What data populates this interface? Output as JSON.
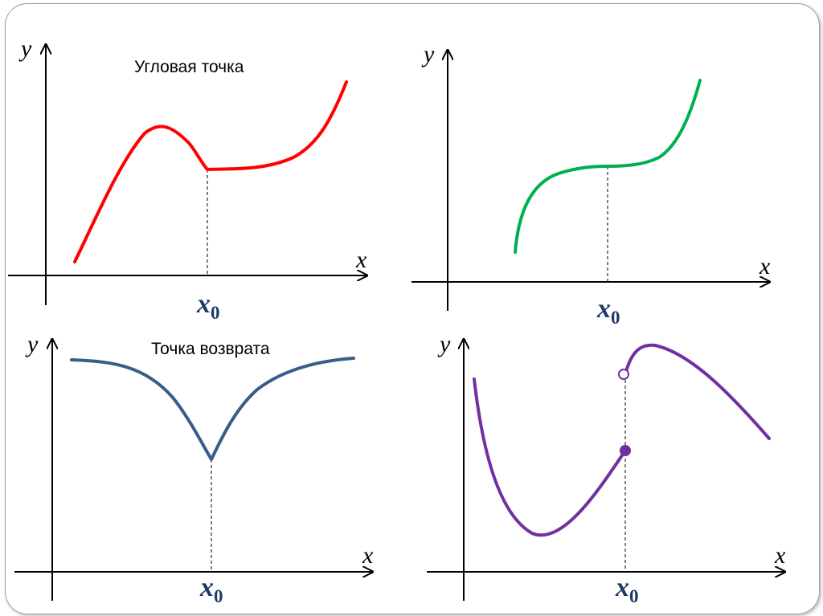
{
  "panels": [
    {
      "title": "Угловая точка",
      "y_axis_label": "y",
      "x_axis_label": "x",
      "point_label": {
        "main": "x",
        "sub": "0"
      },
      "curve_color": "#ff0000"
    },
    {
      "title": "",
      "y_axis_label": "y",
      "x_axis_label": "x",
      "point_label": {
        "main": "x",
        "sub": "0"
      },
      "curve_color": "#00b050"
    },
    {
      "title": "Точка возврата",
      "y_axis_label": "y",
      "x_axis_label": "x",
      "point_label": {
        "main": "x",
        "sub": "0"
      },
      "curve_color": "#385d8a"
    },
    {
      "title": "",
      "y_axis_label": "y",
      "x_axis_label": "x",
      "point_label": {
        "main": "x",
        "sub": "0"
      },
      "curve_color": "#7030a0"
    }
  ],
  "x0_label_color": "#1f3864"
}
